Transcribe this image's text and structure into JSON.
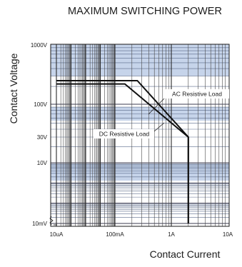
{
  "chart_data": {
    "type": "line",
    "title": "MAXIMUM SWITCHING POWER",
    "xlabel": "Contact Current",
    "ylabel": "Contact Voltage",
    "x_scale": "log",
    "y_scale": "log",
    "xlim": [
      "10uA",
      "10A"
    ],
    "ylim": [
      "10mV",
      "1000V"
    ],
    "x_ticks": [
      "10uA",
      "100mA",
      "1A",
      "10A"
    ],
    "y_ticks": [
      "1000V",
      "100V",
      "30V",
      "10V",
      "10mV"
    ],
    "grid": true,
    "series": [
      {
        "name": "AC Resistive Load",
        "points": [
          {
            "x": "10uA",
            "y": 250
          },
          {
            "x": "250mA",
            "y": 250
          },
          {
            "x": "2A",
            "y": 30
          },
          {
            "x": "2A",
            "y": "10mV"
          }
        ]
      },
      {
        "name": "DC Resistive Load",
        "points": [
          {
            "x": "10uA",
            "y": 220
          },
          {
            "x": "150mA",
            "y": 220
          },
          {
            "x": "2A",
            "y": 30
          },
          {
            "x": "2A",
            "y": "10mV"
          }
        ]
      }
    ],
    "annotations": [
      "AC Resistive Load",
      "DC Resistive Load"
    ]
  }
}
